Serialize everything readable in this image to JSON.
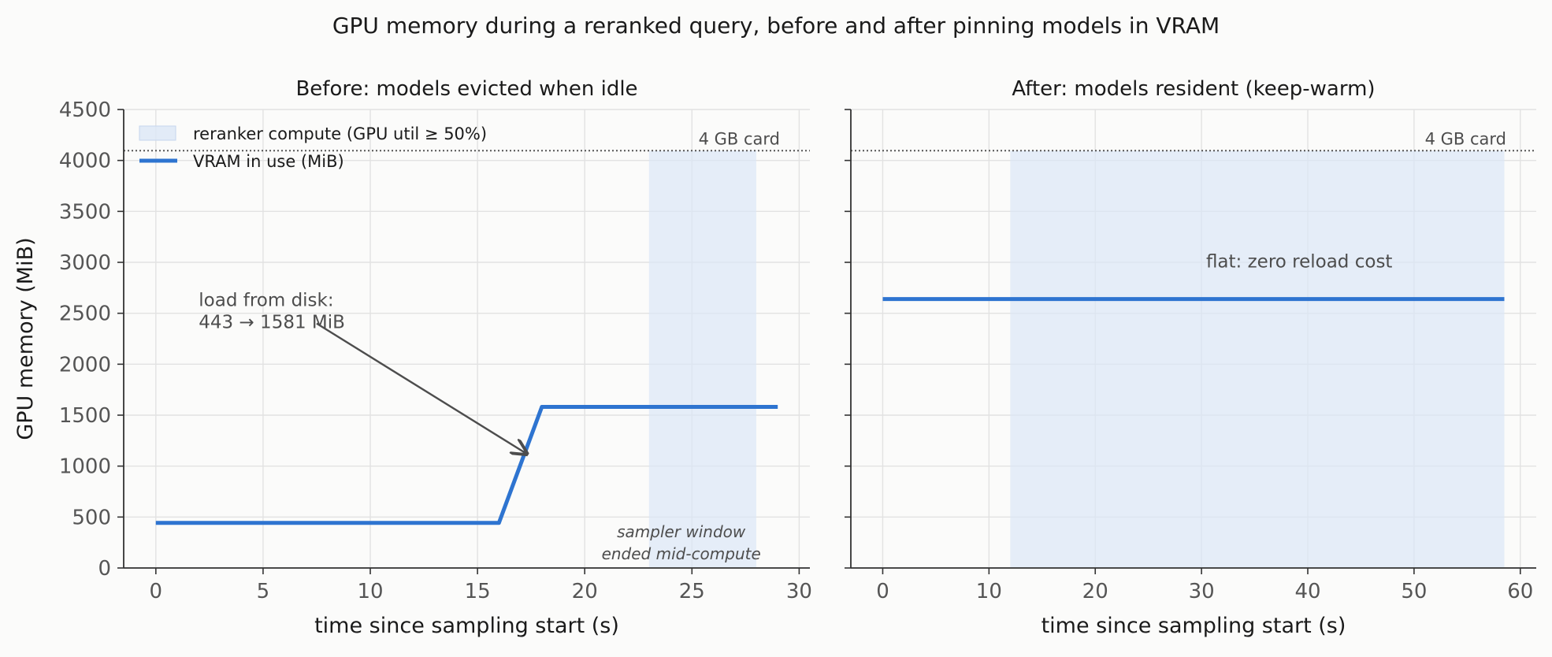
{
  "figure": {
    "title": "GPU memory during a reranked query, before and after pinning models in VRAM"
  },
  "colors": {
    "background": "#fbfbfa",
    "line": "#2e74d0",
    "shade": "#dce7f6",
    "grid": "#e2e2e2",
    "axis": "#333333",
    "annotation": "#4d4d4d"
  },
  "chart_data": [
    {
      "type": "line",
      "title": "Before: models evicted when idle",
      "xlabel": "time since sampling start (s)",
      "ylabel": "GPU memory (MiB)",
      "xlim": [
        -1.5,
        30.5
      ],
      "ylim": [
        0,
        4500
      ],
      "xticks": [
        0,
        5,
        10,
        15,
        20,
        25,
        30
      ],
      "yticks": [
        0,
        500,
        1000,
        1500,
        2000,
        2500,
        3000,
        3500,
        4000,
        4500
      ],
      "grid": true,
      "legend": {
        "placement": "top-left",
        "entries": [
          {
            "label": "reranker compute (GPU util ≥ 50%)",
            "kind": "shade"
          },
          {
            "label": "VRAM in use (MiB)",
            "kind": "line"
          }
        ]
      },
      "series": [
        {
          "name": "VRAM in use (MiB)",
          "x": [
            0,
            16,
            18,
            29
          ],
          "y": [
            443,
            443,
            1581,
            1581
          ]
        }
      ],
      "shaded_regions": [
        {
          "label": "reranker compute (GPU util ≥ 50%)",
          "x_start": 23,
          "x_end": 28,
          "y_top": 4096
        }
      ],
      "reference_lines": [
        {
          "y": 4096,
          "label": "4 GB card",
          "style": "dotted"
        }
      ],
      "annotations": [
        {
          "id": "load",
          "lines": [
            "load from disk:",
            "443 → 1581 MiB"
          ],
          "x": 2,
          "y": 2570,
          "arrow_from": [
            7.5,
            2400
          ],
          "arrow_to": [
            17.3,
            1120
          ]
        },
        {
          "id": "sampler",
          "lines": [
            "sampler window",
            "ended mid-compute"
          ],
          "x": 24.5,
          "y": 300,
          "italic": true
        }
      ]
    },
    {
      "type": "line",
      "title": "After: models resident (keep-warm)",
      "xlabel": "time since sampling start (s)",
      "ylabel": "",
      "xlim": [
        -3,
        61.5
      ],
      "ylim": [
        0,
        4500
      ],
      "xticks": [
        0,
        10,
        20,
        30,
        40,
        50,
        60
      ],
      "yticks": [
        0,
        500,
        1000,
        1500,
        2000,
        2500,
        3000,
        3500,
        4000,
        4500
      ],
      "show_ytick_labels": false,
      "grid": true,
      "series": [
        {
          "name": "VRAM in use (MiB)",
          "x": [
            0,
            58.5
          ],
          "y": [
            2640,
            2640
          ]
        }
      ],
      "shaded_regions": [
        {
          "label": "reranker compute (GPU util ≥ 50%)",
          "x_start": 12,
          "x_end": 58.5,
          "y_top": 4096
        }
      ],
      "reference_lines": [
        {
          "y": 4096,
          "label": "4 GB card",
          "style": "dotted"
        }
      ],
      "annotations": [
        {
          "id": "flat",
          "lines": [
            "flat: zero reload cost"
          ],
          "x": 39.2,
          "y": 2950,
          "italic": false
        }
      ]
    }
  ]
}
